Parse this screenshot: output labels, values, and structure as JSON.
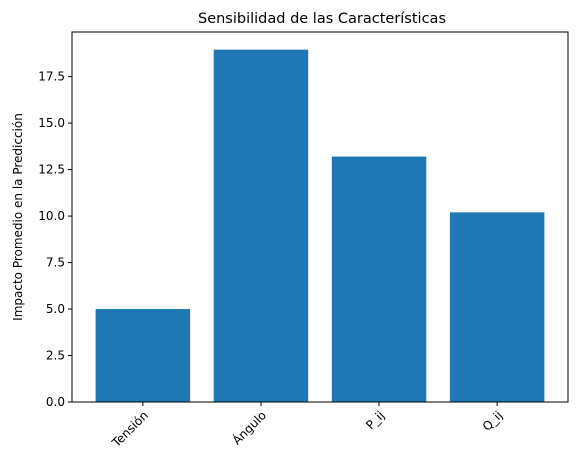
{
  "chart_data": {
    "type": "bar",
    "title": "Sensibilidad de las Características",
    "xlabel": "",
    "ylabel": "Impacto Promedio en la Predicción",
    "categories": [
      "Tensión",
      "Ángulo",
      "P_ij",
      "Q_ij"
    ],
    "values": [
      5.0,
      18.95,
      13.2,
      10.2
    ],
    "ylim": [
      0,
      19.9
    ],
    "yticks": [
      0.0,
      2.5,
      5.0,
      7.5,
      10.0,
      12.5,
      15.0,
      17.5
    ],
    "ytick_labels": [
      "0.0",
      "2.5",
      "5.0",
      "7.5",
      "10.0",
      "12.5",
      "15.0",
      "17.5"
    ],
    "bar_color": "#1f77b4",
    "grid": false,
    "xtick_rotation_deg": 45
  }
}
